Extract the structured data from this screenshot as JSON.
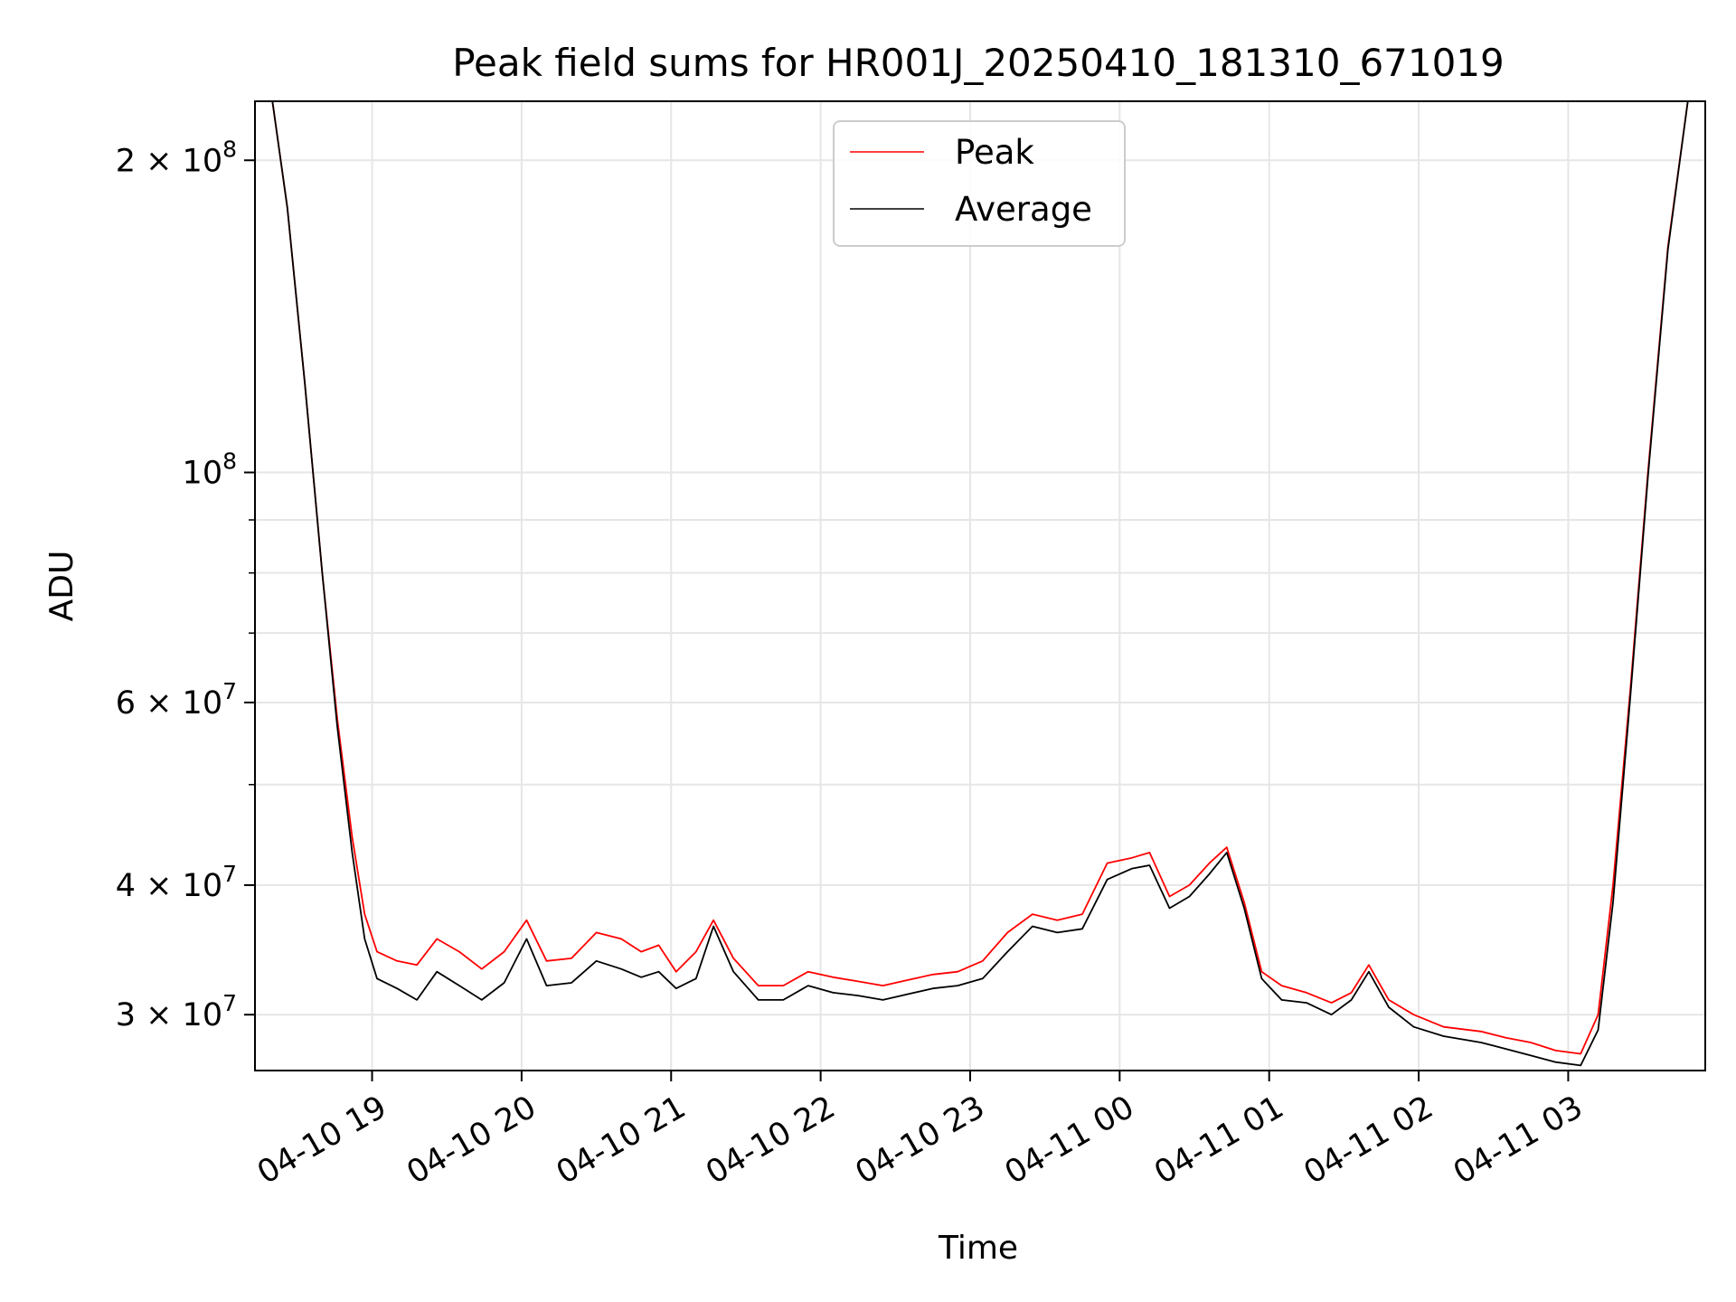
{
  "chart_data": {
    "type": "line",
    "title": "Peak field sums for HR001J_20250410_181310_671019",
    "xlabel": "Time",
    "ylabel": "ADU",
    "y_scale": "log",
    "x_range": [
      "2025-04-10 18:13",
      "2025-04-11 03:55"
    ],
    "ylim": [
      26500000,
      228000000
    ],
    "x_ticks": [
      {
        "label": "04-10 19",
        "time": "2025-04-10 19:00"
      },
      {
        "label": "04-10 20",
        "time": "2025-04-10 20:00"
      },
      {
        "label": "04-10 21",
        "time": "2025-04-10 21:00"
      },
      {
        "label": "04-10 22",
        "time": "2025-04-10 22:00"
      },
      {
        "label": "04-10 23",
        "time": "2025-04-10 23:00"
      },
      {
        "label": "04-11 00",
        "time": "2025-04-11 00:00"
      },
      {
        "label": "04-11 01",
        "time": "2025-04-11 01:00"
      },
      {
        "label": "04-11 02",
        "time": "2025-04-11 02:00"
      },
      {
        "label": "04-11 03",
        "time": "2025-04-11 03:00"
      }
    ],
    "y_ticks": [
      {
        "value": 200000000,
        "base": "2 × 10",
        "exp": "8"
      },
      {
        "value": 100000000,
        "base": "10",
        "exp": "8"
      },
      {
        "value": 60000000,
        "base": "6 × 10",
        "exp": "7"
      },
      {
        "value": 40000000,
        "base": "4 × 10",
        "exp": "7"
      },
      {
        "value": 30000000,
        "base": "3 × 10",
        "exp": "7"
      }
    ],
    "y_minor_ticks": [
      90000000,
      80000000,
      70000000,
      50000000
    ],
    "grid": true,
    "legend_position": "top-center",
    "series": [
      {
        "name": "Peak",
        "color": "#ff0000",
        "points": [
          [
            "2025-04-10 18:13",
            228000000
          ],
          [
            "2025-04-10 18:20",
            228000000
          ],
          [
            "2025-04-10 18:26",
            180000000
          ],
          [
            "2025-04-10 18:33",
            122000000
          ],
          [
            "2025-04-10 18:40",
            80000000
          ],
          [
            "2025-04-10 18:46",
            58000000
          ],
          [
            "2025-04-10 18:52",
            44500000
          ],
          [
            "2025-04-10 18:57",
            37500000
          ],
          [
            "2025-04-10 19:02",
            34500000
          ],
          [
            "2025-04-10 19:10",
            33800000
          ],
          [
            "2025-04-10 19:18",
            33500000
          ],
          [
            "2025-04-10 19:26",
            35500000
          ],
          [
            "2025-04-10 19:35",
            34500000
          ],
          [
            "2025-04-10 19:44",
            33200000
          ],
          [
            "2025-04-10 19:53",
            34500000
          ],
          [
            "2025-04-10 20:02",
            37000000
          ],
          [
            "2025-04-10 20:10",
            33800000
          ],
          [
            "2025-04-10 20:20",
            34000000
          ],
          [
            "2025-04-10 20:30",
            36000000
          ],
          [
            "2025-04-10 20:40",
            35500000
          ],
          [
            "2025-04-10 20:48",
            34500000
          ],
          [
            "2025-04-10 20:55",
            35000000
          ],
          [
            "2025-04-10 21:02",
            33000000
          ],
          [
            "2025-04-10 21:10",
            34500000
          ],
          [
            "2025-04-10 21:17",
            37000000
          ],
          [
            "2025-04-10 21:25",
            34000000
          ],
          [
            "2025-04-10 21:35",
            32000000
          ],
          [
            "2025-04-10 21:45",
            32000000
          ],
          [
            "2025-04-10 21:55",
            33000000
          ],
          [
            "2025-04-10 22:05",
            32600000
          ],
          [
            "2025-04-10 22:15",
            32300000
          ],
          [
            "2025-04-10 22:25",
            32000000
          ],
          [
            "2025-04-10 22:35",
            32400000
          ],
          [
            "2025-04-10 22:45",
            32800000
          ],
          [
            "2025-04-10 22:55",
            33000000
          ],
          [
            "2025-04-10 23:05",
            33800000
          ],
          [
            "2025-04-10 23:15",
            36000000
          ],
          [
            "2025-04-10 23:25",
            37500000
          ],
          [
            "2025-04-10 23:35",
            37000000
          ],
          [
            "2025-04-10 23:45",
            37500000
          ],
          [
            "2025-04-10 23:55",
            42000000
          ],
          [
            "2025-04-11 00:05",
            42500000
          ],
          [
            "2025-04-11 00:12",
            43000000
          ],
          [
            "2025-04-11 00:20",
            39000000
          ],
          [
            "2025-04-11 00:28",
            40000000
          ],
          [
            "2025-04-11 00:36",
            42000000
          ],
          [
            "2025-04-11 00:43",
            43500000
          ],
          [
            "2025-04-11 00:50",
            38500000
          ],
          [
            "2025-04-11 00:57",
            33000000
          ],
          [
            "2025-04-11 01:05",
            32000000
          ],
          [
            "2025-04-11 01:15",
            31500000
          ],
          [
            "2025-04-11 01:25",
            30800000
          ],
          [
            "2025-04-11 01:33",
            31500000
          ],
          [
            "2025-04-11 01:40",
            33500000
          ],
          [
            "2025-04-11 01:48",
            31000000
          ],
          [
            "2025-04-11 01:58",
            30000000
          ],
          [
            "2025-04-11 02:10",
            29200000
          ],
          [
            "2025-04-11 02:25",
            28900000
          ],
          [
            "2025-04-11 02:35",
            28500000
          ],
          [
            "2025-04-11 02:45",
            28200000
          ],
          [
            "2025-04-11 02:55",
            27700000
          ],
          [
            "2025-04-11 03:05",
            27500000
          ],
          [
            "2025-04-11 03:12",
            30000000
          ],
          [
            "2025-04-11 03:18",
            40000000
          ],
          [
            "2025-04-11 03:25",
            62000000
          ],
          [
            "2025-04-11 03:32",
            100000000
          ],
          [
            "2025-04-11 03:40",
            165000000
          ],
          [
            "2025-04-11 03:48",
            228000000
          ],
          [
            "2025-04-11 03:55",
            228000000
          ]
        ]
      },
      {
        "name": "Average",
        "color": "#000000",
        "points": [
          [
            "2025-04-10 18:13",
            228000000
          ],
          [
            "2025-04-10 18:20",
            228000000
          ],
          [
            "2025-04-10 18:26",
            180000000
          ],
          [
            "2025-04-10 18:33",
            122000000
          ],
          [
            "2025-04-10 18:40",
            80000000
          ],
          [
            "2025-04-10 18:46",
            57000000
          ],
          [
            "2025-04-10 18:52",
            43000000
          ],
          [
            "2025-04-10 18:57",
            35500000
          ],
          [
            "2025-04-10 19:02",
            32500000
          ],
          [
            "2025-04-10 19:10",
            31800000
          ],
          [
            "2025-04-10 19:18",
            31000000
          ],
          [
            "2025-04-10 19:26",
            33000000
          ],
          [
            "2025-04-10 19:35",
            32000000
          ],
          [
            "2025-04-10 19:44",
            31000000
          ],
          [
            "2025-04-10 19:53",
            32200000
          ],
          [
            "2025-04-10 20:02",
            35500000
          ],
          [
            "2025-04-10 20:10",
            32000000
          ],
          [
            "2025-04-10 20:20",
            32200000
          ],
          [
            "2025-04-10 20:30",
            33800000
          ],
          [
            "2025-04-10 20:40",
            33200000
          ],
          [
            "2025-04-10 20:48",
            32600000
          ],
          [
            "2025-04-10 20:55",
            33000000
          ],
          [
            "2025-04-10 21:02",
            31800000
          ],
          [
            "2025-04-10 21:10",
            32500000
          ],
          [
            "2025-04-10 21:17",
            36500000
          ],
          [
            "2025-04-10 21:25",
            33000000
          ],
          [
            "2025-04-10 21:35",
            31000000
          ],
          [
            "2025-04-10 21:45",
            31000000
          ],
          [
            "2025-04-10 21:55",
            32000000
          ],
          [
            "2025-04-10 22:05",
            31500000
          ],
          [
            "2025-04-10 22:15",
            31300000
          ],
          [
            "2025-04-10 22:25",
            31000000
          ],
          [
            "2025-04-10 22:35",
            31400000
          ],
          [
            "2025-04-10 22:45",
            31800000
          ],
          [
            "2025-04-10 22:55",
            32000000
          ],
          [
            "2025-04-10 23:05",
            32500000
          ],
          [
            "2025-04-10 23:15",
            34500000
          ],
          [
            "2025-04-10 23:25",
            36500000
          ],
          [
            "2025-04-10 23:35",
            36000000
          ],
          [
            "2025-04-10 23:45",
            36300000
          ],
          [
            "2025-04-10 23:55",
            40500000
          ],
          [
            "2025-04-11 00:05",
            41500000
          ],
          [
            "2025-04-11 00:12",
            41800000
          ],
          [
            "2025-04-11 00:20",
            38000000
          ],
          [
            "2025-04-11 00:28",
            39000000
          ],
          [
            "2025-04-11 00:36",
            41000000
          ],
          [
            "2025-04-11 00:43",
            43000000
          ],
          [
            "2025-04-11 00:50",
            38000000
          ],
          [
            "2025-04-11 00:57",
            32500000
          ],
          [
            "2025-04-11 01:05",
            31000000
          ],
          [
            "2025-04-11 01:15",
            30800000
          ],
          [
            "2025-04-11 01:25",
            30000000
          ],
          [
            "2025-04-11 01:33",
            31000000
          ],
          [
            "2025-04-11 01:40",
            33000000
          ],
          [
            "2025-04-11 01:48",
            30500000
          ],
          [
            "2025-04-11 01:58",
            29200000
          ],
          [
            "2025-04-11 02:10",
            28600000
          ],
          [
            "2025-04-11 02:25",
            28200000
          ],
          [
            "2025-04-11 02:35",
            27800000
          ],
          [
            "2025-04-11 02:45",
            27400000
          ],
          [
            "2025-04-11 02:55",
            27000000
          ],
          [
            "2025-04-11 03:05",
            26800000
          ],
          [
            "2025-04-11 03:12",
            29000000
          ],
          [
            "2025-04-11 03:18",
            38500000
          ],
          [
            "2025-04-11 03:25",
            61000000
          ],
          [
            "2025-04-11 03:32",
            99000000
          ],
          [
            "2025-04-11 03:40",
            164000000
          ],
          [
            "2025-04-11 03:48",
            228000000
          ],
          [
            "2025-04-11 03:55",
            228000000
          ]
        ]
      }
    ]
  }
}
